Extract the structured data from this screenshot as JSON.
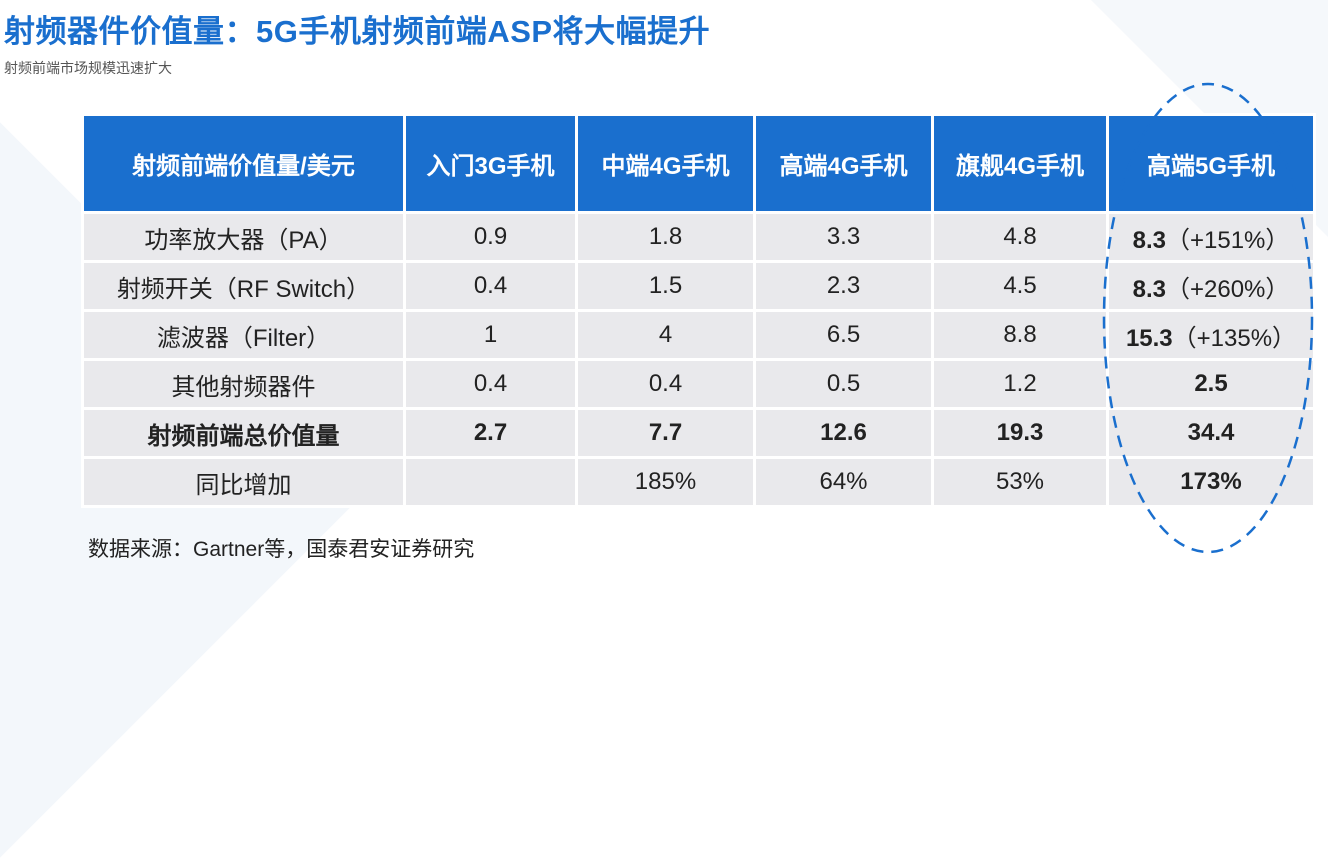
{
  "title": "射频器件价值量：5G手机射频前端ASP将大幅提升",
  "subtitle": "射频前端市场规模迅速扩大",
  "table": {
    "headers": [
      "射频前端价值量/美元",
      "入门3G手机",
      "中端4G手机",
      "高端4G手机",
      "旗舰4G手机",
      "高端5G手机"
    ],
    "rows": [
      {
        "label": "功率放大器（PA）",
        "cells": [
          "0.9",
          "1.8",
          "3.3",
          "4.8"
        ],
        "last_bold": "8.3",
        "last_rest": "（+151%）"
      },
      {
        "label": "射频开关（RF Switch）",
        "cells": [
          "0.4",
          "1.5",
          "2.3",
          "4.5"
        ],
        "last_bold": "8.3",
        "last_rest": "（+260%）"
      },
      {
        "label": "滤波器（Filter）",
        "cells": [
          "1",
          "4",
          "6.5",
          "8.8"
        ],
        "last_bold": "15.3",
        "last_rest": "（+135%）"
      },
      {
        "label": "其他射频器件",
        "cells": [
          "0.4",
          "0.4",
          "0.5",
          "1.2"
        ],
        "last_bold": "2.5",
        "last_rest": ""
      },
      {
        "label": "射频前端总价值量",
        "cells": [
          "2.7",
          "7.7",
          "12.6",
          "19.3"
        ],
        "last_bold": "34.4",
        "last_rest": ""
      },
      {
        "label": "同比增加",
        "cells": [
          "",
          "185%",
          "64%",
          "53%"
        ],
        "last_bold": "173%",
        "last_rest": ""
      }
    ]
  },
  "source": "数据来源：Gartner等，国泰君安证券研究",
  "colors": {
    "header_bg": "#1a6fce",
    "cell_bg": "#e9e9ec",
    "title": "#1a6fce",
    "ellipse": "#1a6fce"
  }
}
